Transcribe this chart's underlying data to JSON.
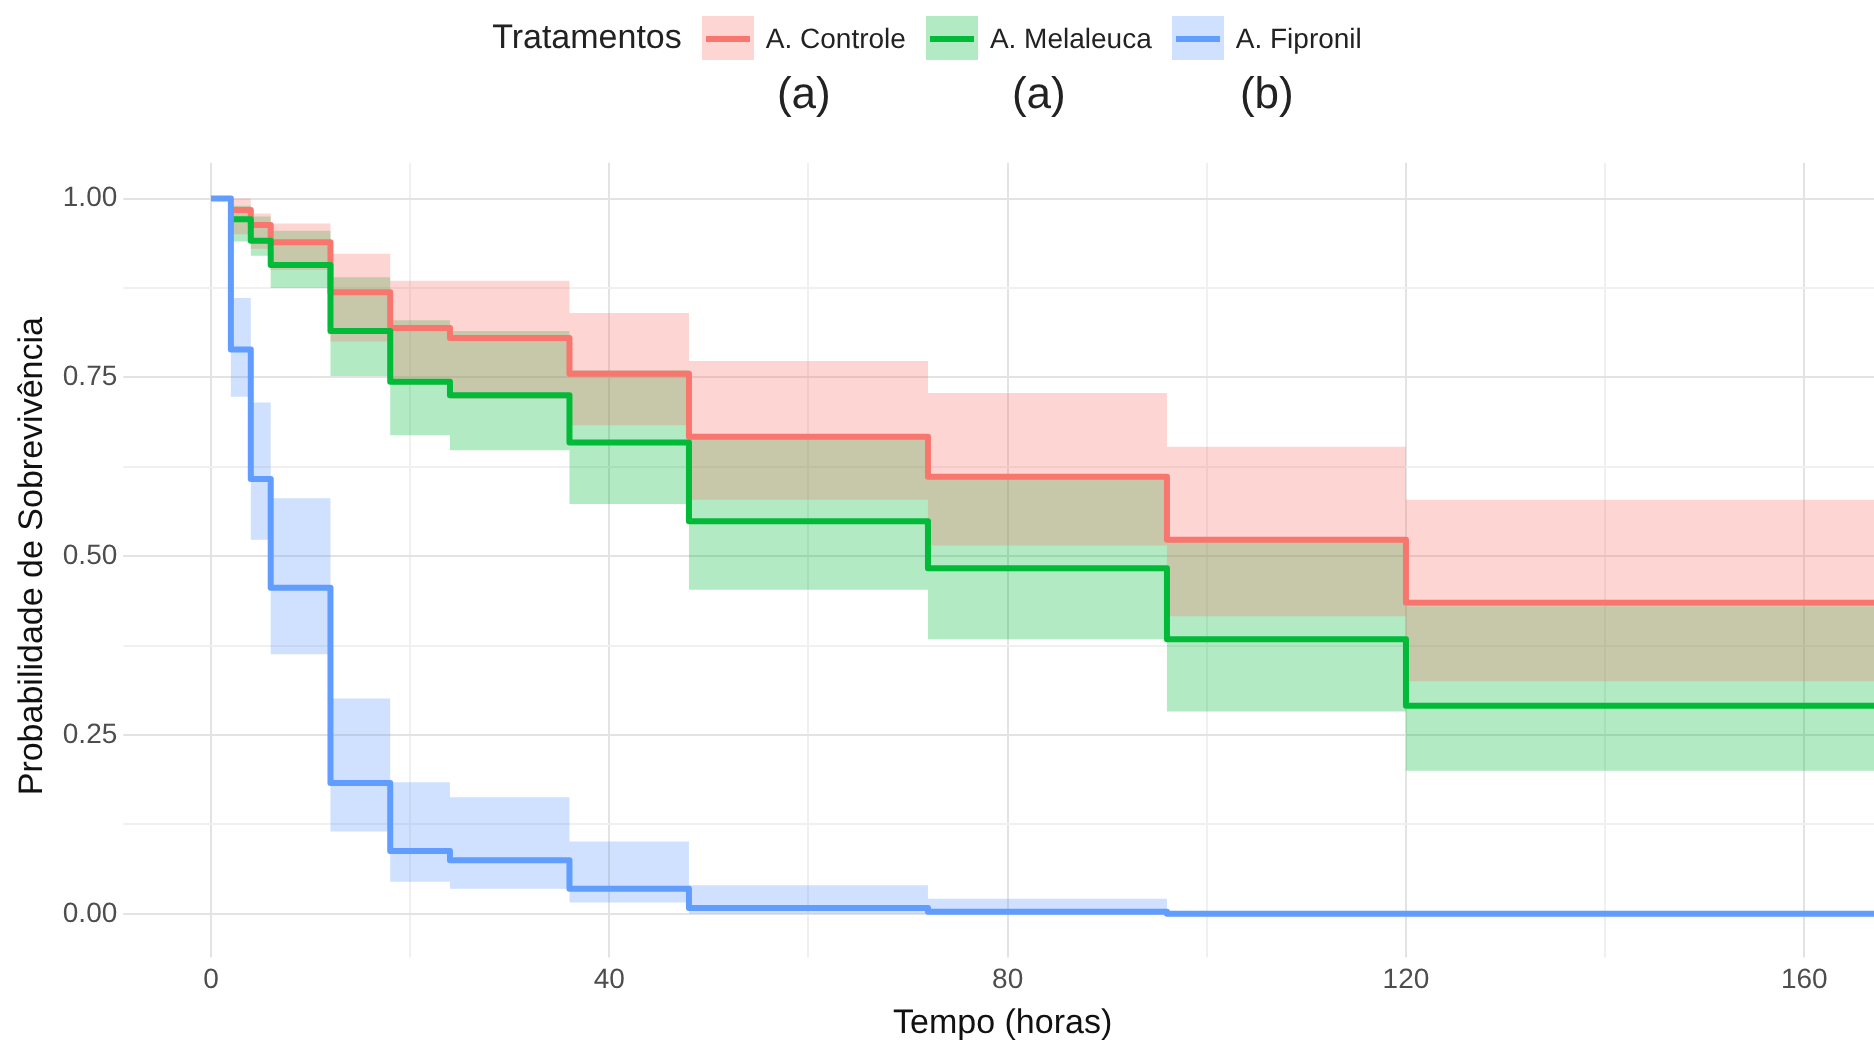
{
  "chart_data": {
    "type": "step",
    "xlabel": "Tempo (horas)",
    "ylabel": "Probabilidade de Sobrevivência",
    "legend_title": "Tratamentos",
    "legend": "top",
    "annotations": [
      "(a)",
      "(a)",
      "(b)"
    ],
    "x": [
      0,
      2,
      4,
      6,
      12,
      18,
      24,
      36,
      48,
      72,
      96,
      120,
      167
    ],
    "xlim": [
      -8,
      167
    ],
    "xticks": [
      0,
      {
        "value": 20,
        "label": null
      },
      40,
      {
        "value": 60,
        "label": null
      },
      80,
      {
        "value": 100,
        "label": null
      },
      120,
      {
        "value": 140,
        "label": null
      },
      160
    ],
    "ylim": [
      -0.05,
      1.05
    ],
    "yticks": [
      {
        "value": 0,
        "label": "0.00"
      },
      {
        "value": 0.125,
        "label": null
      },
      {
        "value": 0.25,
        "label": "0.25"
      },
      {
        "value": 0.375,
        "label": null
      },
      {
        "value": 0.5,
        "label": "0.50"
      },
      {
        "value": 0.625,
        "label": null
      },
      {
        "value": 0.75,
        "label": "0.75"
      },
      {
        "value": 0.875,
        "label": null
      },
      {
        "value": 1,
        "label": "1.00"
      }
    ],
    "grid": true,
    "series": [
      {
        "name": "A. Controle",
        "color": "#f8766d",
        "values": [
          null,
          0.984,
          0.963,
          0.939,
          0.869,
          0.819,
          0.805,
          0.755,
          0.667,
          0.611,
          0.523,
          0.435,
          0.435
        ],
        "lower": [
          1,
          0.95,
          0.93,
          0.9,
          0.8,
          0.74,
          0.72,
          0.683,
          0.579,
          0.515,
          0.416,
          0.325,
          0.325
        ],
        "upper": [
          1,
          1,
          0.979,
          0.965,
          0.923,
          0.885,
          0.885,
          0.84,
          0.773,
          0.728,
          0.653,
          0.579,
          0.579
        ]
      },
      {
        "name": "A. Melaleuca",
        "color": "#00ba38",
        "values": [
          null,
          0.971,
          0.941,
          0.907,
          0.815,
          0.744,
          0.725,
          0.659,
          0.549,
          0.483,
          0.384,
          0.291,
          0.291
        ],
        "lower": [
          1,
          0.94,
          0.92,
          0.875,
          0.752,
          0.669,
          0.648,
          0.573,
          0.453,
          0.384,
          0.283,
          0.2,
          0.2
        ],
        "upper": [
          1,
          0.99,
          0.975,
          0.955,
          0.89,
          0.83,
          0.815,
          0.76,
          0.67,
          0.61,
          0.52,
          0.43,
          0.43
        ]
      },
      {
        "name": "A. Fipronil",
        "color": "#619cff",
        "values": [
          1,
          0.789,
          0.608,
          0.456,
          0.183,
          0.088,
          0.075,
          0.035,
          0.008,
          0.003,
          0,
          0,
          0
        ],
        "lower": [
          1,
          0.723,
          0.523,
          0.363,
          0.115,
          0.045,
          0.035,
          0.016,
          0,
          0,
          0,
          0,
          0
        ],
        "upper": [
          1,
          0.861,
          0.715,
          0.581,
          0.301,
          0.184,
          0.163,
          0.101,
          0.04,
          0.021,
          0,
          0,
          0
        ]
      }
    ]
  }
}
